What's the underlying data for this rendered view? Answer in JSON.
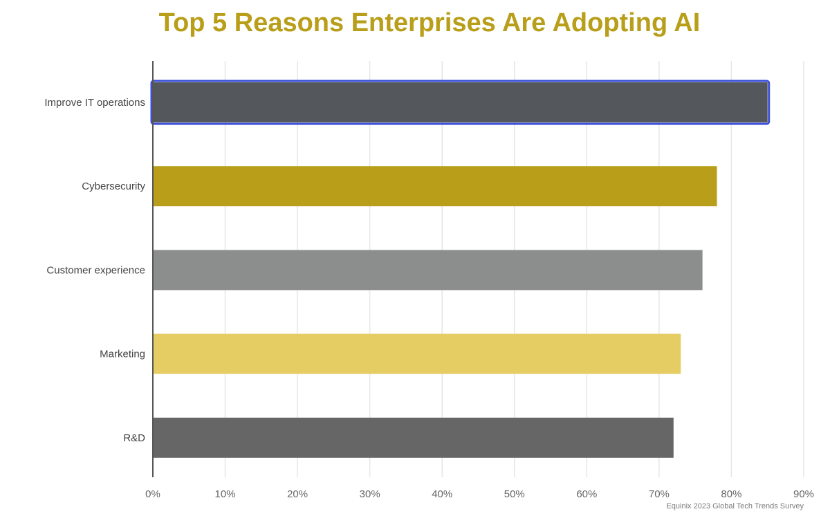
{
  "chart_data": {
    "type": "bar",
    "orientation": "horizontal",
    "title": "Top 5 Reasons Enterprises Are Adopting AI",
    "categories": [
      "Improve IT operations",
      "Cybersecurity",
      "Customer experience",
      "Marketing",
      "R&D"
    ],
    "values": [
      85,
      78,
      76,
      73,
      72
    ],
    "bar_colors": [
      "#54575b",
      "#b89e19",
      "#8b8e8c",
      "#e5cd64",
      "#666666"
    ],
    "highlight_outline_color": "#3b4fd8",
    "xlim": [
      0,
      90
    ],
    "x_ticks": [
      0,
      10,
      20,
      30,
      40,
      50,
      60,
      70,
      80,
      90
    ],
    "x_tick_labels": [
      "0%",
      "10%",
      "20%",
      "30%",
      "40%",
      "50%",
      "60%",
      "70%",
      "80%",
      "90%"
    ],
    "xlabel": "",
    "ylabel": "",
    "grid": true,
    "source": "Equinix 2023 Global Tech Trends Survey"
  },
  "colors": {
    "title": "#b89e19",
    "grid": "#e6e6e6",
    "axis": "#555555",
    "label": "#444444",
    "tick_label": "#666666"
  }
}
